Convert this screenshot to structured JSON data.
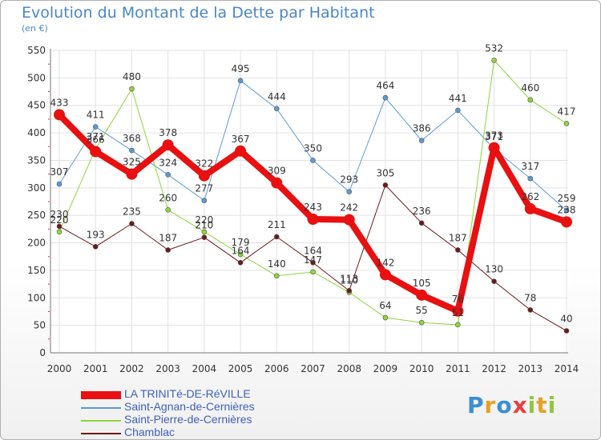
{
  "chart_data": {
    "type": "line",
    "title": "Evolution du Montant de la Dette par Habitant",
    "subtitle": "(en €)",
    "x": [
      "2000",
      "2001",
      "2002",
      "2003",
      "2004",
      "2005",
      "2006",
      "2007",
      "2008",
      "2009",
      "2010",
      "2011",
      "2012",
      "2013",
      "2014"
    ],
    "ylim": [
      0,
      550
    ],
    "yticks": [
      0,
      50,
      100,
      150,
      200,
      250,
      300,
      350,
      400,
      450,
      500,
      550
    ],
    "grid": true,
    "legend_position": "bottom",
    "series": [
      {
        "name": "LA TRINITé-DE-RéVILLE",
        "color": "#e81010",
        "width": 8,
        "values": [
          433,
          366,
          325,
          378,
          322,
          367,
          309,
          243,
          242,
          142,
          105,
          76,
          373,
          262,
          238
        ]
      },
      {
        "name": "Saint-Agnan-de-Cernières",
        "color": "#5b9bd5",
        "width": 1,
        "values": [
          307,
          411,
          368,
          324,
          277,
          495,
          444,
          350,
          293,
          464,
          386,
          441,
          371,
          317,
          259
        ]
      },
      {
        "name": "Saint-Pierre-de-Cernières",
        "color": "#8ed43c",
        "width": 1,
        "values": [
          220,
          371,
          480,
          260,
          220,
          179,
          140,
          147,
          110,
          64,
          55,
          51,
          532,
          460,
          417
        ]
      },
      {
        "name": "Chamblac",
        "color": "#6b1a1a",
        "width": 1,
        "values": [
          230,
          193,
          235,
          187,
          210,
          164,
          211,
          164,
          113,
          305,
          236,
          187,
          130,
          78,
          40
        ]
      }
    ]
  },
  "logo": {
    "letters": [
      "P",
      "r",
      "o",
      "x",
      "i",
      "t",
      "i"
    ],
    "colors": [
      "#3a8fd0",
      "#e8a020",
      "#3a8fd0",
      "#e84040",
      "#8ec63f",
      "#e8a020",
      "#8ec63f"
    ]
  }
}
